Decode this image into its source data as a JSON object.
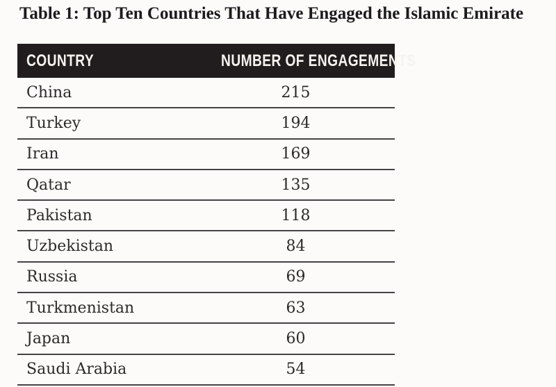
{
  "page_title": "Table 1: Top Ten Countries That Have Engaged the Islamic Emirate",
  "table": {
    "columns": [
      "COUNTRY",
      "NUMBER OF ENGAGEMENTS"
    ],
    "rows": [
      {
        "country": "China",
        "engagements": "215"
      },
      {
        "country": "Turkey",
        "engagements": "194"
      },
      {
        "country": "Iran",
        "engagements": "169"
      },
      {
        "country": "Qatar",
        "engagements": "135"
      },
      {
        "country": "Pakistan",
        "engagements": "118"
      },
      {
        "country": "Uzbekistan",
        "engagements": "84"
      },
      {
        "country": "Russia",
        "engagements": "69"
      },
      {
        "country": "Turkmenistan",
        "engagements": "63"
      },
      {
        "country": "Japan",
        "engagements": "60"
      },
      {
        "country": "Saudi Arabia",
        "engagements": "54"
      }
    ]
  },
  "colors": {
    "header_background": "#211d1e",
    "header_text": "#f5f3ef",
    "body_text": "#2b2a28",
    "separator_line": "#454343",
    "title_text": "#1b1b1d",
    "page_background": "#fcfbfa"
  },
  "chart_data": {
    "type": "table",
    "title": "Table 1: Top Ten Countries That Have Engaged the Islamic Emirate",
    "columns": [
      "COUNTRY",
      "NUMBER OF ENGAGEMENTS"
    ],
    "categories": [
      "China",
      "Turkey",
      "Iran",
      "Qatar",
      "Pakistan",
      "Uzbekistan",
      "Russia",
      "Turkmenistan",
      "Japan",
      "Saudi Arabia"
    ],
    "values": [
      215,
      194,
      169,
      135,
      118,
      84,
      69,
      63,
      60,
      54
    ]
  }
}
